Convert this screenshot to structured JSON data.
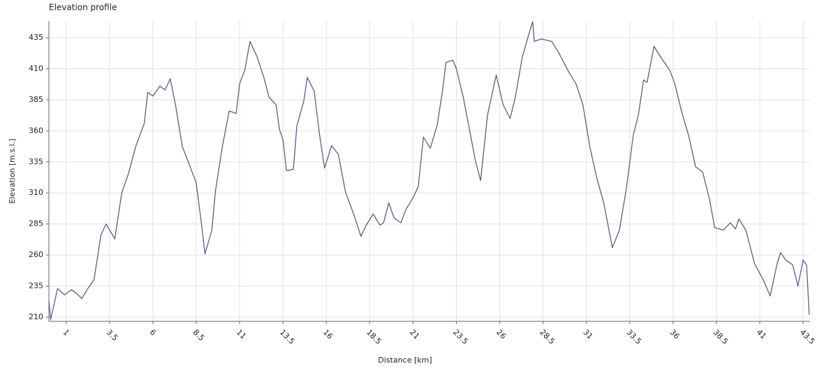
{
  "chart_data": {
    "type": "line",
    "title": "Elevation profile",
    "x_label": "Distance [km]",
    "y_label": "Elevation [m.s.l.]",
    "x": [
      0,
      0.1,
      0.5,
      0.9,
      1.3,
      1.6,
      1.9,
      2.2,
      2.6,
      3.0,
      3.3,
      3.8,
      4.2,
      4.6,
      5.0,
      5.5,
      5.7,
      6.0,
      6.4,
      6.7,
      7.0,
      7.3,
      7.7,
      8.1,
      8.5,
      8.8,
      9.0,
      9.4,
      9.6,
      10.0,
      10.4,
      10.8,
      11.0,
      11.3,
      11.6,
      12.0,
      12.4,
      12.7,
      13.1,
      13.3,
      13.5,
      13.7,
      14.1,
      14.3,
      14.7,
      14.9,
      15.3,
      15.6,
      15.9,
      16.3,
      16.7,
      17.1,
      17.6,
      18.0,
      18.3,
      18.7,
      19.1,
      19.3,
      19.6,
      19.9,
      20.3,
      20.6,
      21.0,
      21.3,
      21.6,
      22.0,
      22.4,
      22.7,
      22.9,
      23.3,
      23.5,
      23.9,
      24.3,
      24.6,
      24.9,
      25.3,
      25.8,
      26.2,
      26.6,
      26.9,
      27.3,
      27.6,
      27.9,
      28.0,
      28.4,
      29.0,
      29.4,
      30.0,
      30.4,
      30.8,
      31.2,
      31.6,
      32.0,
      32.5,
      32.9,
      33.3,
      33.7,
      34.0,
      34.3,
      34.5,
      34.9,
      35.3,
      35.8,
      36.1,
      36.5,
      36.9,
      37.3,
      37.7,
      38.1,
      38.4,
      38.9,
      39.3,
      39.6,
      39.8,
      40.2,
      40.7,
      41.2,
      41.6,
      42.0,
      42.2,
      42.5,
      42.9,
      43.2,
      43.5,
      43.7,
      43.85
    ],
    "series": [
      {
        "color": "#5c5c8c",
        "values": [
          223,
          208,
          233,
          228,
          232,
          229,
          225,
          232,
          240,
          276,
          285,
          273,
          310,
          326,
          347,
          366,
          391,
          388,
          396,
          393,
          402,
          381,
          347,
          333,
          318,
          285,
          261,
          280,
          311,
          347,
          376,
          374,
          398,
          409,
          432,
          420,
          403,
          387,
          381,
          361,
          353,
          328,
          329,
          364,
          384,
          403,
          392,
          358,
          330,
          348,
          341,
          311,
          292,
          275,
          284,
          293,
          284,
          286,
          302,
          290,
          286,
          297,
          306,
          315,
          355,
          346,
          365,
          392,
          415,
          417,
          410,
          387,
          358,
          336,
          320,
          373,
          405,
          381,
          370,
          387,
          419,
          434,
          448,
          432,
          434,
          432,
          423,
          407,
          398,
          381,
          347,
          322,
          302,
          266,
          280,
          313,
          356,
          373,
          401,
          399,
          428,
          419,
          409,
          398,
          375,
          356,
          331,
          327,
          305,
          282,
          280,
          286,
          281,
          289,
          280,
          253,
          240,
          227,
          253,
          262,
          256,
          252,
          235,
          256,
          252,
          212
        ]
      }
    ],
    "xlim": [
      0,
      43.9
    ],
    "ylim": [
      206.6,
      448.5
    ],
    "xticks": [
      1,
      3.5,
      6,
      8.5,
      11,
      13.5,
      16,
      18.5,
      21,
      23.5,
      26,
      28.5,
      31,
      33.5,
      36,
      38.5,
      41,
      43.5
    ],
    "yticks": [
      210,
      235,
      260,
      285,
      310,
      335,
      360,
      385,
      410,
      435
    ],
    "grid": true
  }
}
